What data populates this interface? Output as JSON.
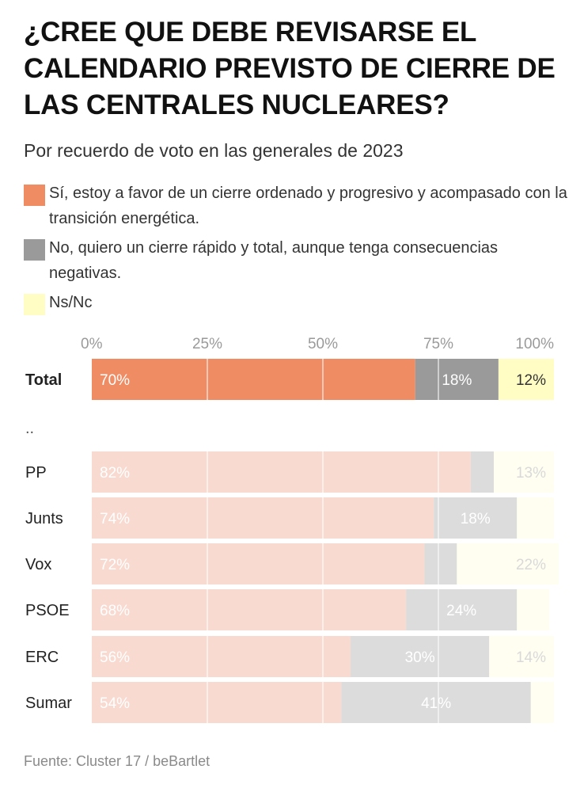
{
  "title": "¿CREE QUE DEBE REVISARSE EL CALENDARIO PREVISTO DE CIERRE DE LAS CENTRALES NUCLEARES?",
  "subtitle": "Por recuerdo de voto en las generales de 2023",
  "legend": [
    {
      "label": "Sí, estoy a favor de un cierre ordenado y progresivo y acompasado con la transición energética.",
      "color": "#ef8c64"
    },
    {
      "label": "No, quiero un cierre rápido y total, aunque tenga consecuencias negativas.",
      "color": "#9a9a9a"
    },
    {
      "label": "Ns/Nc",
      "color": "#fffdc4"
    }
  ],
  "source": "Fuente: Cluster 17 / beBartlet",
  "chart_data": {
    "type": "bar",
    "orientation": "horizontal",
    "stacked": true,
    "title": "¿CREE QUE DEBE REVISARSE EL CALENDARIO PREVISTO DE CIERRE DE LAS CENTRALES NUCLEARES?",
    "subtitle": "Por recuerdo de voto en las generales de 2023",
    "xlim": [
      0,
      100
    ],
    "x_ticks": [
      0,
      25,
      50,
      75,
      100
    ],
    "x_tick_labels": [
      "0%",
      "25%",
      "50%",
      "75%",
      "100%"
    ],
    "grid": true,
    "separator_label": "..",
    "categories": [
      "Total",
      "PP",
      "Junts",
      "Vox",
      "PSOE",
      "ERC",
      "Sumar"
    ],
    "highlight_category": "Total",
    "series": [
      {
        "name": "Sí, estoy a favor de un cierre ordenado y progresivo y acompasado con la transición energética.",
        "values": [
          70,
          82,
          74,
          72,
          68,
          56,
          54
        ],
        "labels": [
          "70%",
          "82%",
          "74%",
          "72%",
          "68%",
          "56%",
          "54%"
        ],
        "color": "#ef8c64",
        "faded_color": "#f8dad0"
      },
      {
        "name": "No, quiero un cierre rápido y total, aunque tenga consecuencias negativas.",
        "values": [
          18,
          5,
          18,
          7,
          24,
          30,
          41
        ],
        "labels": [
          "18%",
          "",
          "18%",
          "",
          "24%",
          "30%",
          "41%"
        ],
        "color": "#9a9a9a",
        "faded_color": "#dcdcdc"
      },
      {
        "name": "Ns/Nc",
        "values": [
          12,
          13,
          8,
          22,
          7,
          14,
          5
        ],
        "labels": [
          "12%",
          "13%",
          "",
          "22%",
          "",
          "14%",
          ""
        ],
        "color": "#fffdc4",
        "faded_color": "#fffef0"
      }
    ]
  }
}
